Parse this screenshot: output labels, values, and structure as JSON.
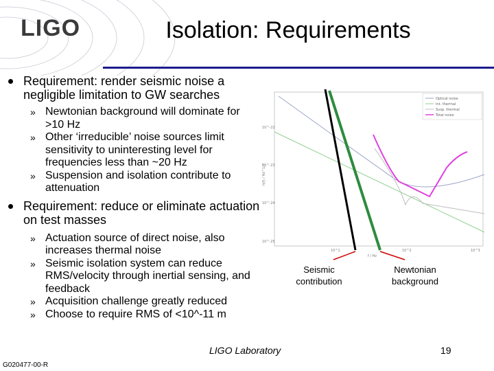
{
  "header": {
    "logo": "LIGO",
    "title": "Isolation: Requirements"
  },
  "bullets": [
    {
      "text": "Requirement: render seismic noise a negligible limitation to GW searches",
      "subs": [
        "Newtonian background will dominate for >10 Hz",
        "Other ‘irreducible’ noise sources limit sensitivity to uninteresting level for frequencies less than ~20 Hz",
        "Suspension and isolation contribute to attenuation"
      ]
    },
    {
      "text": "Requirement: reduce or eliminate actuation on test masses",
      "subs": [
        "Actuation source of direct noise, also increases thermal noise",
        "Seismic isolation system can reduce RMS/velocity through inertial sensing, and feedback",
        "Acquisition challenge greatly reduced",
        "Choose to require RMS of <10^-11 m"
      ]
    }
  ],
  "sub_marker": "»",
  "figure": {
    "legend": [
      "Optical noise",
      "Int. thermal",
      "Susp. thermal",
      "Total noise"
    ],
    "colors": {
      "optical": "#9aa4c8",
      "int_thermal": "#8fcf8f",
      "susp_thermal": "#bdbdbd",
      "total": "#e040e0",
      "seismic": "#000000",
      "newtonian": "#2e8b3e"
    },
    "y_ticks": [
      "10^-22",
      "10^-23",
      "10^-24",
      "10^-25"
    ],
    "x_ticks": [
      "10^1",
      "10^2",
      "10^3"
    ],
    "x_label": "f / Hz",
    "y_label": "h(f) / Hz^1/2",
    "labels": {
      "seismic": "Seismic contribution",
      "newtonian": "Newtonian background"
    }
  },
  "footer": {
    "lab": "LIGO Laboratory",
    "page": "19",
    "doc_id": "G020477-00-R"
  }
}
